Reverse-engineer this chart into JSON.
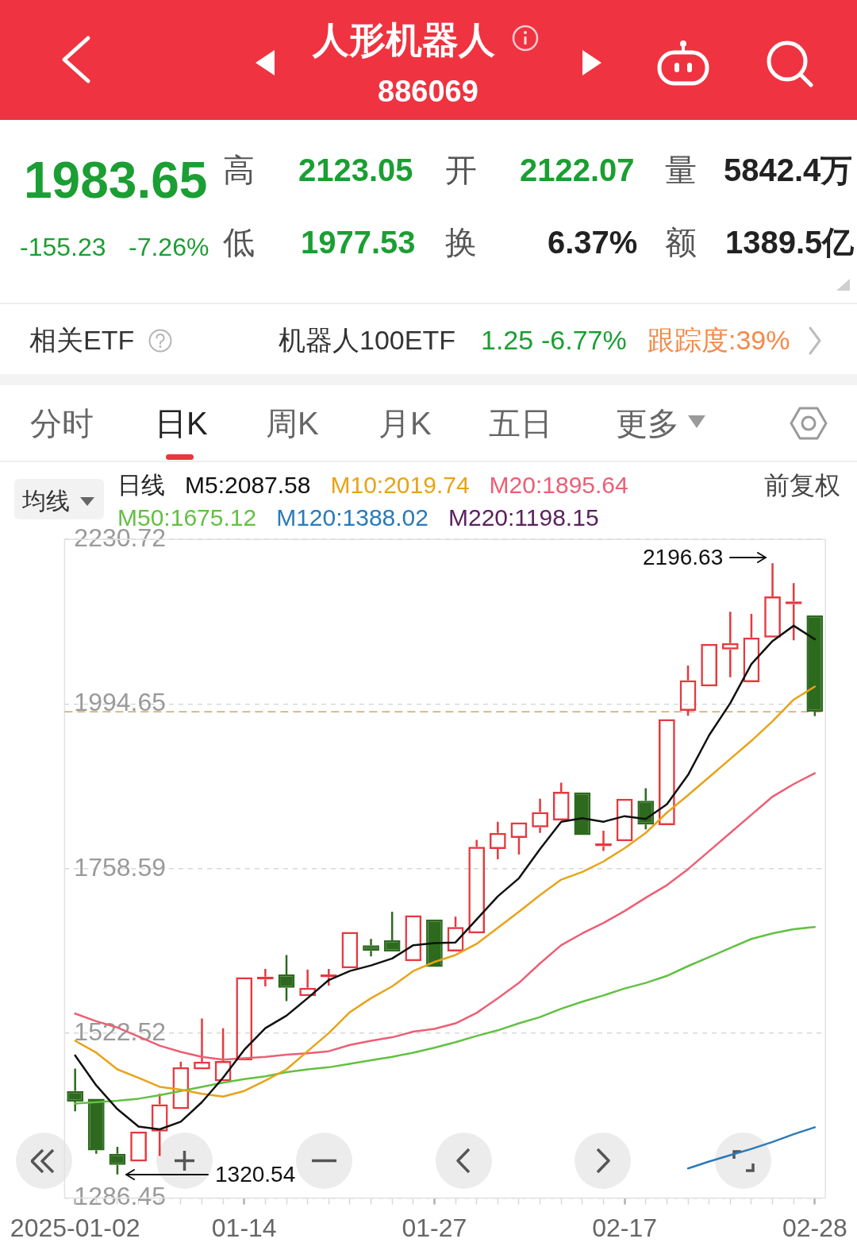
{
  "chart_data": {
    "type": "candlestick",
    "title": "人形机器人",
    "subtitle": "886069",
    "legend_title": "日线",
    "legend": "top left",
    "categories": [
      "2025-01-02",
      null,
      null,
      null,
      null,
      null,
      null,
      null,
      "01-14",
      null,
      null,
      null,
      null,
      null,
      null,
      null,
      null,
      "01-27",
      null,
      null,
      null,
      null,
      null,
      null,
      null,
      null,
      "02-17",
      null,
      null,
      null,
      null,
      null,
      null,
      null,
      null,
      "02-28"
    ],
    "ohlc": [
      [
        1440,
        1472,
        1411,
        1425
      ],
      [
        1429,
        1429,
        1350,
        1355
      ],
      [
        1350,
        1360,
        1320.54,
        1334
      ],
      [
        1339,
        1382,
        1339,
        1382
      ],
      [
        1382,
        1436,
        1347,
        1421
      ],
      [
        1414,
        1482,
        1414,
        1474
      ],
      [
        1471,
        1544,
        1471,
        1482
      ],
      [
        1454,
        1530,
        1454,
        1483
      ],
      [
        1484,
        1603,
        1484,
        1603
      ],
      [
        1600,
        1615,
        1590,
        1604
      ],
      [
        1607,
        1635,
        1569,
        1588
      ],
      [
        1576,
        1614,
        1576,
        1588
      ],
      [
        1603,
        1615,
        1591,
        1607
      ],
      [
        1616,
        1668,
        1616,
        1668
      ],
      [
        1649,
        1658,
        1633,
        1641
      ],
      [
        1656,
        1697,
        1640,
        1640
      ],
      [
        1626,
        1692,
        1626,
        1692
      ],
      [
        1686,
        1686,
        1618,
        1618
      ],
      [
        1640,
        1690,
        1640,
        1675
      ],
      [
        1666,
        1800,
        1666,
        1790
      ],
      [
        1787,
        1826,
        1772,
        1810
      ],
      [
        1803,
        1825,
        1779,
        1825
      ],
      [
        1818,
        1859,
        1810,
        1840
      ],
      [
        1828,
        1882,
        1828,
        1869
      ],
      [
        1868,
        1868,
        1806,
        1807
      ],
      [
        1791,
        1813,
        1784,
        1795
      ],
      [
        1798,
        1859,
        1798,
        1859
      ],
      [
        1856,
        1874,
        1815,
        1822
      ],
      [
        1821,
        1973,
        1821,
        1973
      ],
      [
        1985,
        2050,
        1978,
        2029
      ],
      [
        2020,
        2081,
        2020,
        2081
      ],
      [
        2073,
        2127,
        2033,
        2082
      ],
      [
        2026,
        2124,
        2026,
        2090
      ],
      [
        2090,
        2196.63,
        2090,
        2149
      ],
      [
        2138,
        2168,
        2086,
        2142
      ],
      [
        2122.07,
        2123.05,
        1977.53,
        1983.65
      ]
    ],
    "colors": [
      "#2d6a1e",
      "#2d6a1e",
      "#2d6a1e",
      "#e5393f",
      "#e5393f",
      "#e5393f",
      "#e5393f",
      "#e5393f",
      "#e5393f",
      "#e5393f",
      "#2d6a1e",
      "#e5393f",
      "#e5393f",
      "#e5393f",
      "#2d6a1e",
      "#2d6a1e",
      "#e5393f",
      "#2d6a1e",
      "#e5393f",
      "#e5393f",
      "#e5393f",
      "#e5393f",
      "#e5393f",
      "#e5393f",
      "#2d6a1e",
      "#e5393f",
      "#e5393f",
      "#2d6a1e",
      "#e5393f",
      "#e5393f",
      "#e5393f",
      "#e5393f",
      "#e5393f",
      "#e5393f",
      "#e5393f",
      "#2d6a1e"
    ],
    "series": [
      {
        "name": "M5:2087.58",
        "type": "line",
        "color": "#111111",
        "values": [
          1491,
          1448,
          1414,
          1389,
          1385,
          1396,
          1424,
          1459,
          1499,
          1530,
          1548,
          1573,
          1599,
          1612,
          1620,
          1630,
          1649,
          1652,
          1653,
          1686,
          1719,
          1745,
          1787,
          1826,
          1831,
          1826,
          1834,
          1830,
          1851,
          1893,
          1950,
          1996,
          2052,
          2085,
          2107,
          2087.58
        ]
      },
      {
        "name": "M10:2019.74",
        "type": "line",
        "color": "#e8a317",
        "values": [
          1512,
          1495,
          1471,
          1459,
          1446,
          1442,
          1436,
          1432,
          1440,
          1455,
          1471,
          1497,
          1523,
          1553,
          1573,
          1590,
          1612,
          1625,
          1635,
          1651,
          1674,
          1697,
          1721,
          1743,
          1754,
          1769,
          1788,
          1810,
          1839,
          1864,
          1890,
          1916,
          1942,
          1970,
          2001,
          2019.74
        ]
      },
      {
        "name": "M20:1895.64",
        "type": "line",
        "color": "#ec5f74",
        "values": [
          1551,
          1540,
          1531,
          1518,
          1505,
          1496,
          1489,
          1485,
          1487,
          1489,
          1492,
          1494,
          1497,
          1506,
          1512,
          1517,
          1525,
          1529,
          1537,
          1552,
          1573,
          1595,
          1623,
          1649,
          1666,
          1681,
          1698,
          1717,
          1735,
          1758,
          1784,
          1810,
          1836,
          1862,
          1880,
          1895.64
        ]
      },
      {
        "name": "M50:1675.12",
        "type": "line",
        "color": "#63c043",
        "values": [
          1422,
          1424,
          1426,
          1429,
          1434,
          1440,
          1446,
          1452,
          1457,
          1461,
          1467,
          1471,
          1474,
          1479,
          1484,
          1489,
          1495,
          1502,
          1510,
          1519,
          1527,
          1537,
          1546,
          1558,
          1568,
          1577,
          1587,
          1595,
          1605,
          1619,
          1632,
          1645,
          1658,
          1666,
          1672,
          1675.12
        ]
      },
      {
        "name": "M120:1388.02",
        "type": "line",
        "color": "#2b7bb9",
        "values": [
          null,
          null,
          null,
          null,
          null,
          null,
          null,
          null,
          null,
          null,
          null,
          null,
          null,
          null,
          null,
          null,
          null,
          null,
          null,
          null,
          null,
          null,
          null,
          null,
          null,
          null,
          null,
          null,
          null,
          1329,
          1339,
          1348,
          1357,
          1367,
          1378,
          1388.02
        ]
      },
      {
        "name": "M220:1198.15",
        "type": "line",
        "color": "#5c1f5f",
        "values": [
          null,
          null,
          null,
          null,
          null,
          null,
          null,
          null,
          null,
          null,
          null,
          null,
          null,
          null,
          null,
          null,
          null,
          null,
          null,
          null,
          null,
          null,
          null,
          null,
          null,
          null,
          null,
          null,
          null,
          null,
          null,
          null,
          null,
          null,
          null,
          null
        ]
      }
    ],
    "ylim": [
      1286.45,
      2230.72
    ],
    "yticks": [
      1286.45,
      1522.52,
      1758.59,
      1994.65,
      2230.72
    ],
    "grid": "y",
    "ref_lines": [
      {
        "axis": "y",
        "value": 1983.65,
        "color": "#c9a66b",
        "line_style": "dashed"
      }
    ],
    "annotations": [
      "1983.65",
      "高",
      "2123.05",
      "开",
      "2122.07",
      "量",
      "5842.4万",
      "-155.23",
      "-7.26%",
      "低",
      "1977.53",
      "换",
      "6.37%",
      "额",
      "1389.5亿",
      "相关ETF",
      "机器人100ETF",
      "1.25",
      "-6.77%",
      "跟踪度:39%",
      "分时",
      "日K",
      "周K",
      "月K",
      "五日",
      "更多",
      "均线",
      "前复权",
      "2196.63",
      "1320.54"
    ]
  }
}
